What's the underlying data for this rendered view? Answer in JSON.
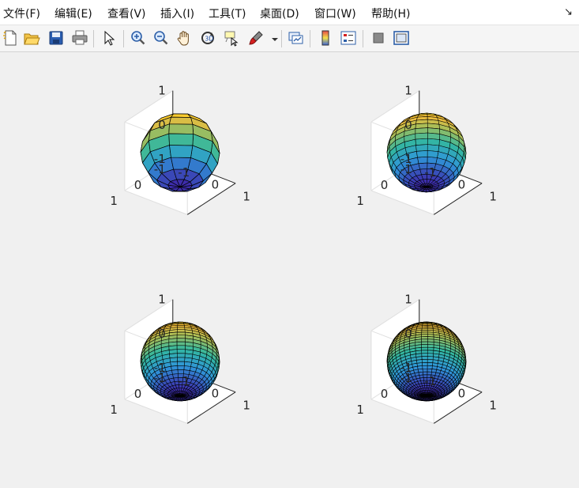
{
  "menubar": {
    "items": [
      {
        "label": "文件(F)"
      },
      {
        "label": "编辑(E)"
      },
      {
        "label": "查看(V)"
      },
      {
        "label": "插入(I)"
      },
      {
        "label": "工具(T)"
      },
      {
        "label": "桌面(D)"
      },
      {
        "label": "窗口(W)"
      },
      {
        "label": "帮助(H)"
      }
    ],
    "dock_icon": "↘"
  },
  "toolbar": {
    "tools": [
      "new-figure-icon",
      "open-file-icon",
      "save-icon",
      "print-icon",
      "select-pointer-icon",
      "zoom-in-icon",
      "zoom-out-icon",
      "pan-hand-icon",
      "rotate-3d-icon",
      "data-cursor-icon",
      "brush-icon",
      "link-plot-icon",
      "insert-colorbar-icon",
      "insert-legend-icon",
      "hide-plot-tools-icon",
      "show-plot-tools-icon"
    ]
  },
  "figure": {
    "background": "#f0f0f0",
    "colormap": [
      "#3e26a8",
      "#2f96d9",
      "#33b7a0",
      "#a5be5a",
      "#f9bc38",
      "#f9fb0e"
    ],
    "subplots": [
      {
        "plot": "surf(sphere(n))",
        "n": 10,
        "z_ticks": [
          "-1",
          "0",
          "1"
        ],
        "y_ticks": [
          "-1",
          "0",
          "1"
        ],
        "x_ticks": [
          "-1",
          "0",
          "1"
        ]
      },
      {
        "plot": "surf(sphere(n))",
        "n": 20,
        "z_ticks": [
          "-1",
          "0",
          "1"
        ],
        "y_ticks": [
          "-1",
          "0",
          "1"
        ],
        "x_ticks": [
          "-1",
          "0",
          "1"
        ]
      },
      {
        "plot": "surf(sphere(n))",
        "n": 30,
        "z_ticks": [
          "-1",
          "0",
          "1"
        ],
        "y_ticks": [
          "-1",
          "0",
          "1"
        ],
        "x_ticks": [
          "-1",
          "0",
          "1"
        ]
      },
      {
        "plot": "surf(sphere(n))",
        "n": 40,
        "z_ticks": [
          "-1",
          "0",
          "1"
        ],
        "y_ticks": [
          "-1",
          "0",
          "1"
        ],
        "x_ticks": [
          "-1",
          "0",
          "1"
        ]
      }
    ]
  }
}
